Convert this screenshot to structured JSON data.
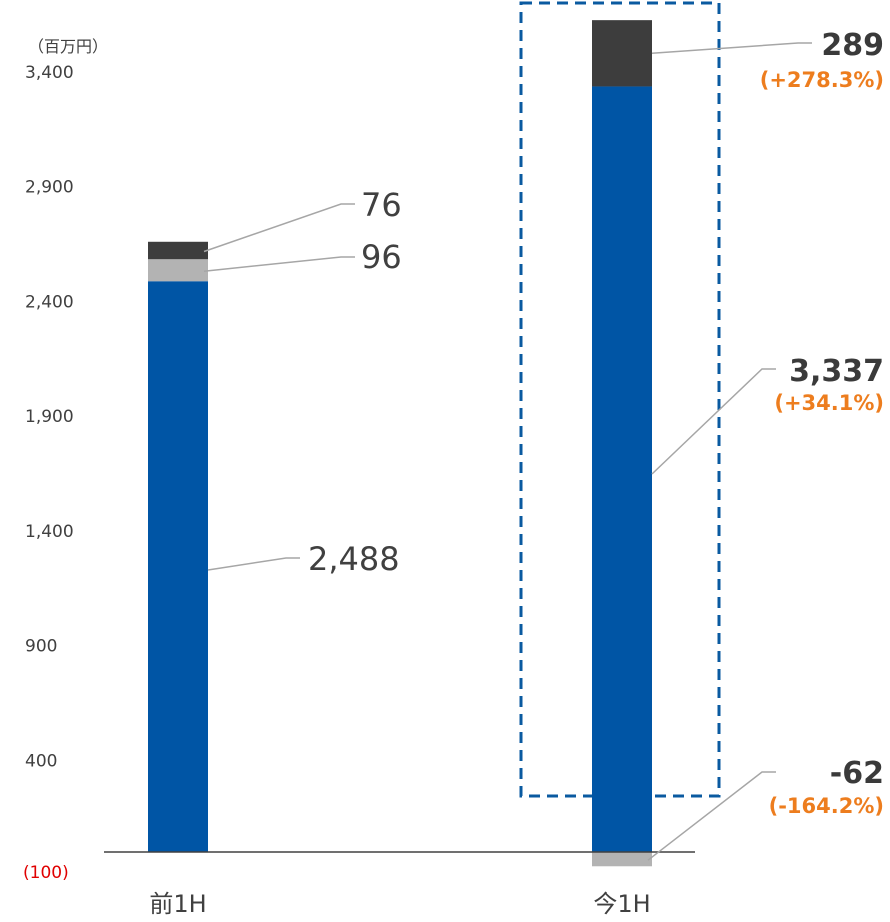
{
  "chart_data": {
    "type": "bar",
    "stacked": true,
    "unit_label": "（百万円）",
    "categories": [
      "前1H",
      "今1H"
    ],
    "y_ticks": [
      "(100)",
      "400",
      "900",
      "1,400",
      "1,900",
      "2,400",
      "2,900",
      "3,400"
    ],
    "y_tick_values": [
      -100,
      400,
      900,
      1400,
      1900,
      2400,
      2900,
      3400
    ],
    "ylim": [
      -100,
      3400
    ],
    "grid": false,
    "highlighted_category": "今1H",
    "series": [
      {
        "color": "#0055a5",
        "values": [
          2488,
          3337
        ],
        "labels": [
          "2,488",
          "3,337"
        ],
        "changes": [
          "",
          "(+34.1%)"
        ]
      },
      {
        "color": "#b3b3b3",
        "values": [
          96,
          -62
        ],
        "labels": [
          "96",
          "-62"
        ],
        "changes": [
          "",
          "(-164.2%)"
        ]
      },
      {
        "color": "#3d3d3d",
        "values": [
          76,
          289
        ],
        "labels": [
          "76",
          "289"
        ],
        "changes": [
          "",
          "(+278.3%)"
        ]
      }
    ]
  },
  "colors": {
    "axis": "#404040",
    "leader": "#a6a6a6",
    "highlight_border": "#0a5aa0",
    "change": "#ed7d1e",
    "negative_tick": "#e00000"
  }
}
